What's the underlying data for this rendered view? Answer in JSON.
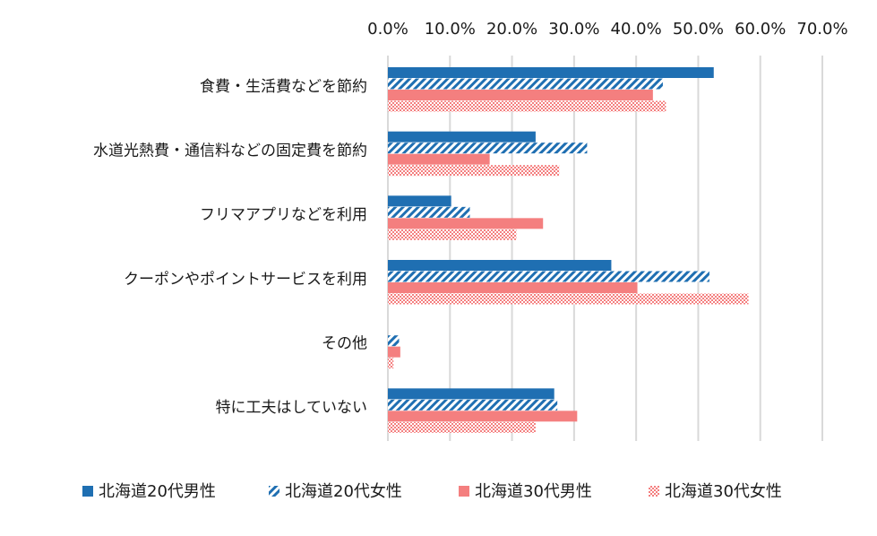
{
  "chart_data": {
    "type": "bar",
    "orientation": "horizontal",
    "title": "",
    "xlabel": "",
    "ylabel": "",
    "xlim": [
      0,
      70
    ],
    "x_tick_step": 10,
    "x_tick_labels": [
      "0.0%",
      "10.0%",
      "20.0%",
      "30.0%",
      "40.0%",
      "50.0%",
      "60.0%",
      "70.0%"
    ],
    "grid": "vertical",
    "legend_position": "bottom",
    "categories": [
      "食費・生活費などを節約",
      "水道光熱費・通信料などの固定費を節約",
      "フリマアプリなどを利用",
      "クーポンやポイントサービスを利用",
      "その他",
      "特に工夫はしていない"
    ],
    "series": [
      {
        "name": "北海道20代男性",
        "color": "#1f6fb2",
        "pattern": "solid",
        "values": [
          52.5,
          23.8,
          10.2,
          36.0,
          0.0,
          26.8
        ]
      },
      {
        "name": "北海道20代女性",
        "color": "#1f6fb2",
        "pattern": "diagonal-stripes",
        "values": [
          44.3,
          32.1,
          13.2,
          51.8,
          1.8,
          27.3
        ]
      },
      {
        "name": "北海道30代男性",
        "color": "#f47f7f",
        "pattern": "solid",
        "values": [
          42.7,
          16.4,
          25.0,
          40.2,
          2.0,
          30.5
        ]
      },
      {
        "name": "北海道30代女性",
        "color": "#f47f7f",
        "pattern": "dots",
        "values": [
          44.8,
          27.6,
          20.7,
          58.1,
          0.9,
          23.8
        ]
      }
    ]
  }
}
